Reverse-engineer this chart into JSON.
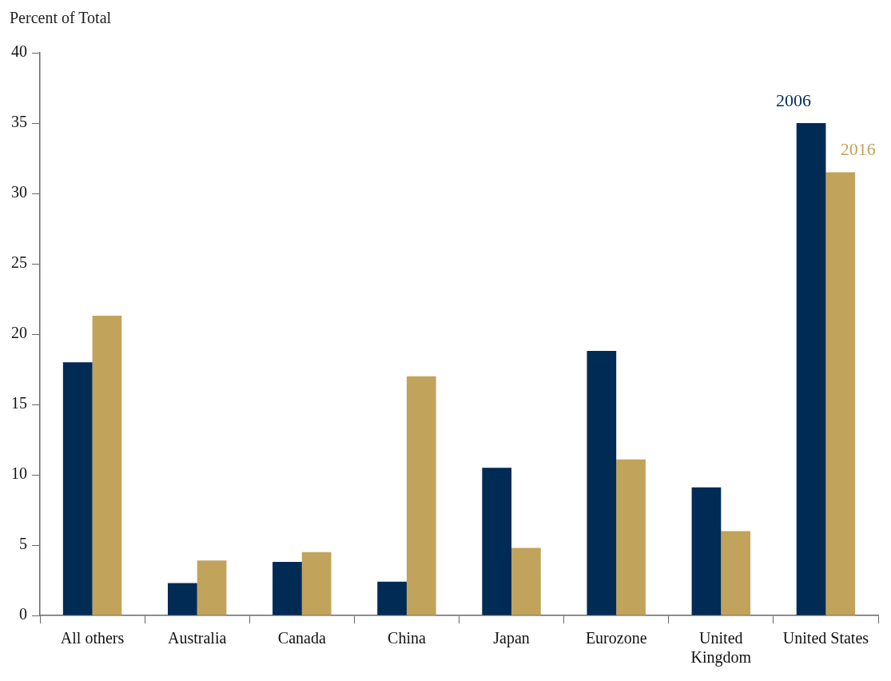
{
  "chart_data": {
    "type": "bar",
    "ylabel": "Percent of Total",
    "categories": [
      "All others",
      "Australia",
      "Canada",
      "China",
      "Japan",
      "Eurozone",
      "United Kingdom",
      "United States"
    ],
    "series": [
      {
        "name": "2006",
        "color": "#002b54",
        "values": [
          18.0,
          2.3,
          3.8,
          2.4,
          10.5,
          18.8,
          9.1,
          35.0
        ]
      },
      {
        "name": "2016",
        "color": "#c1a35c",
        "values": [
          21.3,
          3.9,
          4.5,
          17.0,
          4.8,
          11.1,
          6.0,
          31.5
        ]
      }
    ],
    "ylim": [
      0,
      40
    ],
    "yticks": [
      0,
      5,
      10,
      15,
      20,
      25,
      30,
      35,
      40
    ],
    "grid": false,
    "legend": false
  }
}
